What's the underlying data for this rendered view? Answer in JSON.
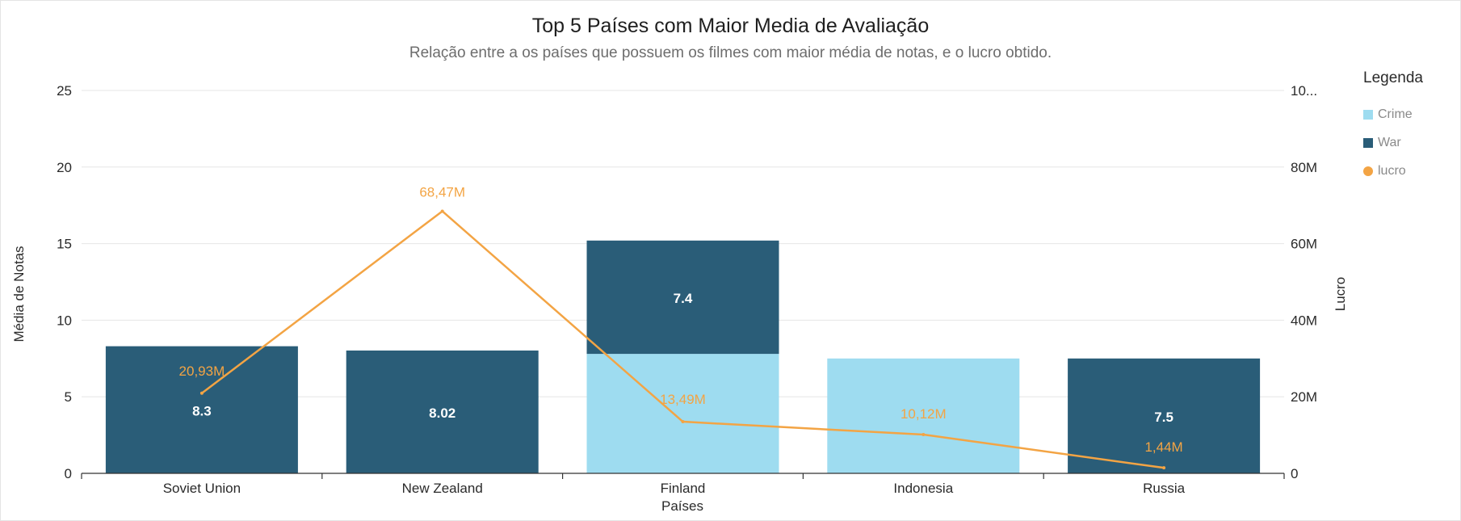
{
  "chart_data": {
    "type": "bar",
    "title": "Top 5 Países com Maior Media de Avaliação",
    "subtitle": "Relação entre a os países que possuem os filmes com maior média de notas, e o lucro obtido.",
    "xlabel": "Países",
    "ylabel": "Média de Notas",
    "y2label": "Lucro",
    "categories": [
      "Soviet Union",
      "New Zealand",
      "Finland",
      "Indonesia",
      "Russia"
    ],
    "ylim": [
      0,
      25
    ],
    "y_ticks": [
      "0",
      "5",
      "10",
      "15",
      "20",
      "25"
    ],
    "y2lim": [
      0,
      100000000
    ],
    "y2_ticks": [
      "0",
      "20M",
      "40M",
      "60M",
      "80M",
      "10..."
    ],
    "grid": true,
    "legend_title": "Legenda",
    "legend_position": "right",
    "series": [
      {
        "name": "Crime",
        "type": "stacked-bar",
        "color": "#9edcf0",
        "values": [
          null,
          null,
          7.8,
          7.5,
          null
        ],
        "labels": [
          "",
          "",
          "",
          "",
          ""
        ]
      },
      {
        "name": "War",
        "type": "stacked-bar",
        "color": "#2a5d78",
        "values": [
          8.3,
          8.02,
          7.4,
          null,
          7.5
        ],
        "labels": [
          "8.3",
          "8.02",
          "7.4",
          "",
          "7.5"
        ]
      },
      {
        "name": "lucro",
        "type": "line",
        "axis": "right",
        "color": "#f3a444",
        "values": [
          20930000,
          68470000,
          13490000,
          10120000,
          1440000
        ],
        "labels": [
          "20,93M",
          "68,47M",
          "13,49M",
          "10,12M",
          "1,44M"
        ]
      }
    ]
  }
}
